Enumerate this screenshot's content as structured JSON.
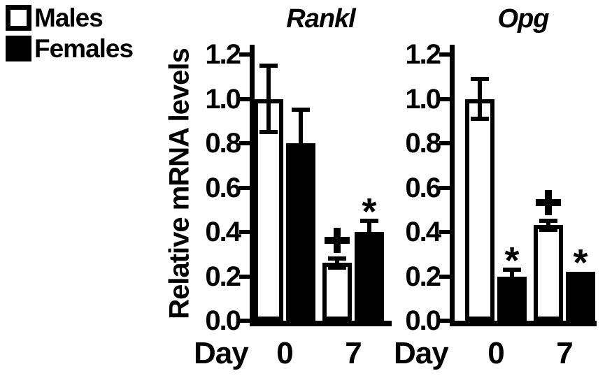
{
  "legend": {
    "items": [
      {
        "label": "Males",
        "fill": "#ffffff"
      },
      {
        "label": "Females",
        "fill": "#000000"
      }
    ]
  },
  "y_axis_label": "Relative mRNA levels",
  "colors": {
    "foreground": "#000000",
    "background": "#ffffff"
  },
  "chart_data": [
    {
      "type": "bar",
      "title": "Rankl",
      "ylabel": "Relative mRNA levels",
      "ylim": [
        0,
        1.2
      ],
      "yticks": [
        0.0,
        0.2,
        0.4,
        0.6,
        0.8,
        1.0,
        1.2
      ],
      "x_prefix": "Day",
      "categories": [
        "0",
        "7"
      ],
      "grid": false,
      "legend_position": "top-left-of-figure",
      "series": [
        {
          "name": "Males",
          "fill": "#ffffff",
          "values": [
            1.0,
            0.26
          ],
          "errors": [
            0.15,
            0.02
          ],
          "annotations": [
            "",
            "+"
          ]
        },
        {
          "name": "Females",
          "fill": "#000000",
          "values": [
            0.8,
            0.4
          ],
          "errors": [
            0.15,
            0.05
          ],
          "annotations": [
            "",
            "*"
          ]
        }
      ]
    },
    {
      "type": "bar",
      "title": "Opg",
      "ylabel": "Relative mRNA levels",
      "ylim": [
        0,
        1.2
      ],
      "yticks": [
        0.0,
        0.2,
        0.4,
        0.6,
        0.8,
        1.0,
        1.2
      ],
      "x_prefix": "Day",
      "categories": [
        "0",
        "7"
      ],
      "grid": false,
      "legend_position": "top-left-of-figure",
      "series": [
        {
          "name": "Males",
          "fill": "#ffffff",
          "values": [
            1.0,
            0.43
          ],
          "errors": [
            0.09,
            0.02
          ],
          "annotations": [
            "",
            "+"
          ]
        },
        {
          "name": "Females",
          "fill": "#000000",
          "values": [
            0.2,
            0.22
          ],
          "errors": [
            0.03,
            0.0
          ],
          "annotations": [
            "*",
            "*"
          ]
        }
      ]
    }
  ]
}
